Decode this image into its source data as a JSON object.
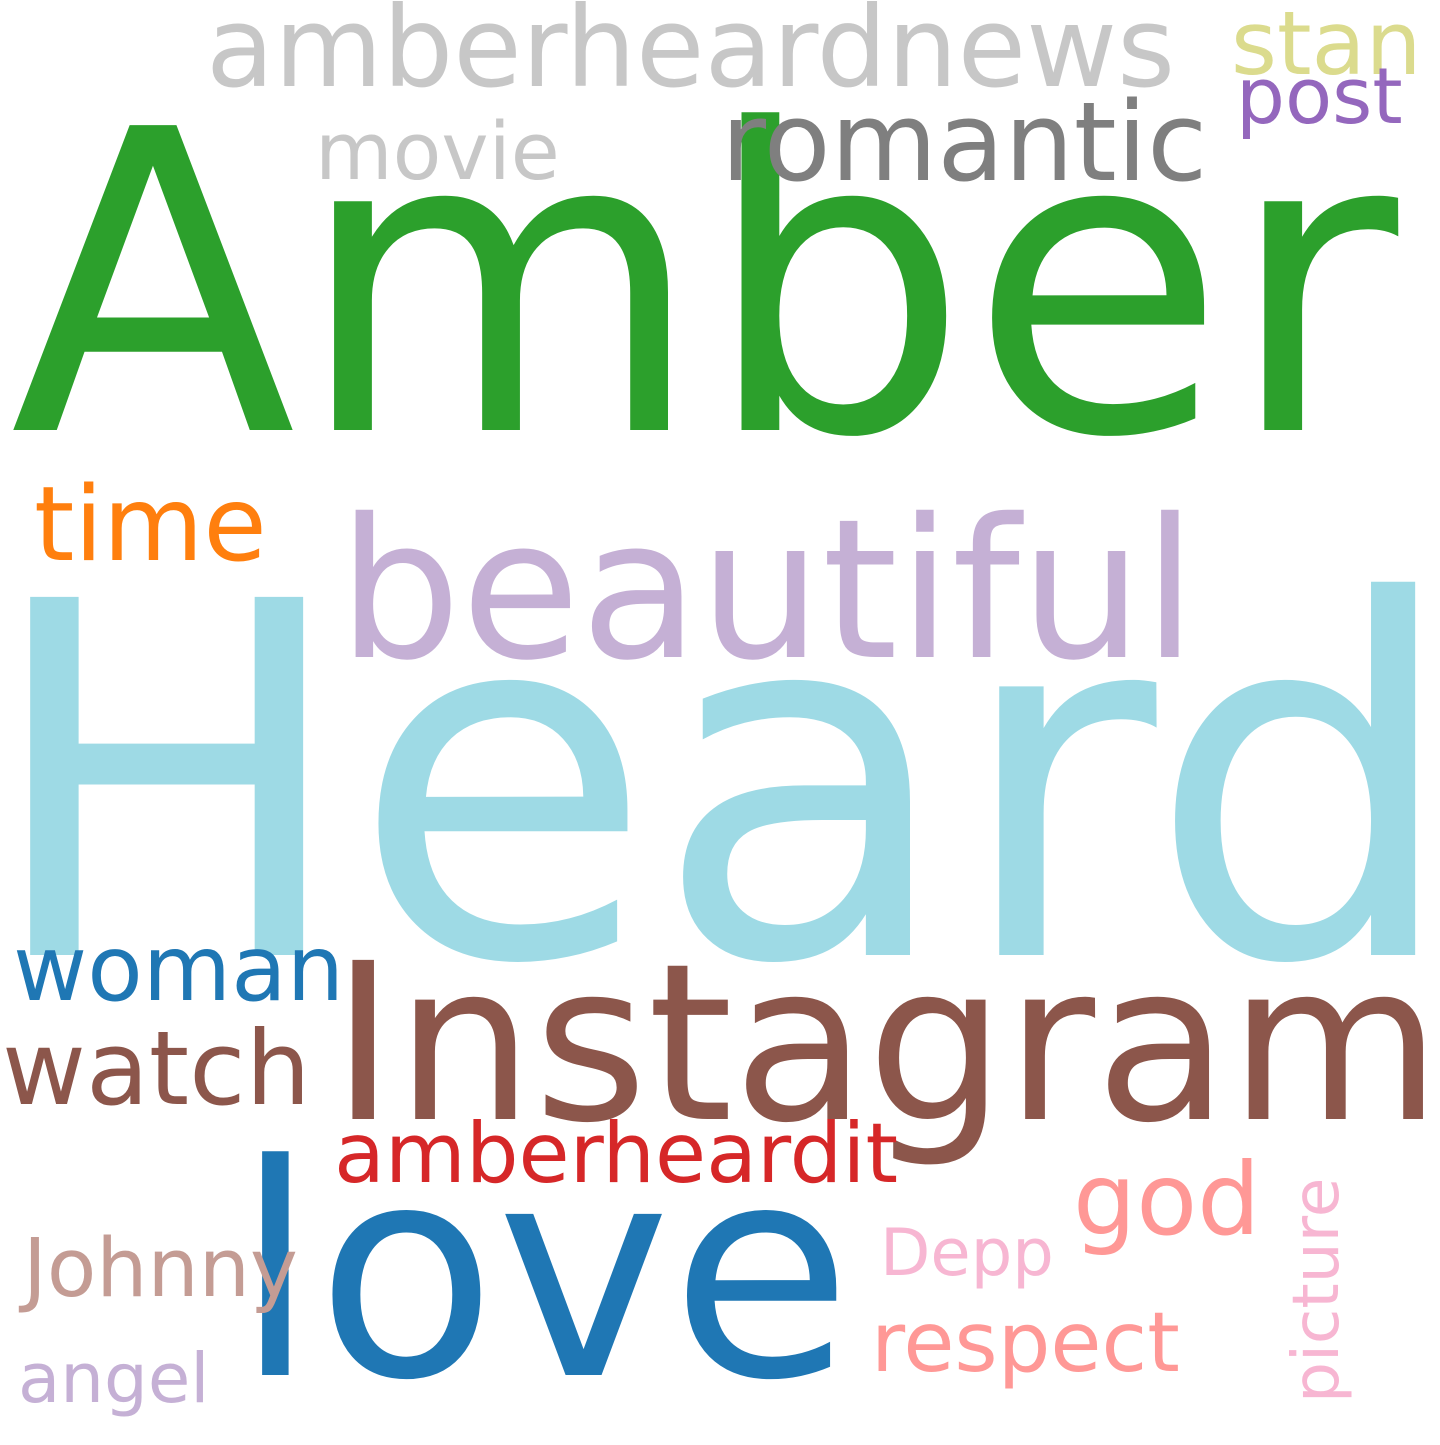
{
  "words": [
    {
      "key": "amber",
      "text": "Amber",
      "color": "#2ca02c"
    },
    {
      "key": "heard",
      "text": "Heard",
      "color": "#9edae5"
    },
    {
      "key": "instagram",
      "text": "Instagram",
      "color": "#8c564b"
    },
    {
      "key": "beautiful",
      "text": "beautiful",
      "color": "#c5b0d5"
    },
    {
      "key": "love",
      "text": "love",
      "color": "#1f77b4"
    },
    {
      "key": "amberheardnews",
      "text": "amberheardnews",
      "color": "#c7c7c7"
    },
    {
      "key": "romantic",
      "text": "romantic",
      "color": "#7f7f7f"
    },
    {
      "key": "movie",
      "text": "movie",
      "color": "#c7c7c7"
    },
    {
      "key": "stan",
      "text": "stan",
      "color": "#dbdb8d"
    },
    {
      "key": "post",
      "text": "post",
      "color": "#9467bd"
    },
    {
      "key": "time",
      "text": "time",
      "color": "#ff7f0e"
    },
    {
      "key": "woman",
      "text": "woman",
      "color": "#1f77b4"
    },
    {
      "key": "watch",
      "text": "watch",
      "color": "#8c564b"
    },
    {
      "key": "amberheardit",
      "text": "amberheardit",
      "color": "#d62728"
    },
    {
      "key": "god",
      "text": "god",
      "color": "#ff9896"
    },
    {
      "key": "johnny",
      "text": "Johnny",
      "color": "#c49c94"
    },
    {
      "key": "depp",
      "text": "Depp",
      "color": "#f7b6d2"
    },
    {
      "key": "respect",
      "text": "respect",
      "color": "#ff9896"
    },
    {
      "key": "angel",
      "text": "angel",
      "color": "#c5b0d5"
    },
    {
      "key": "picture",
      "text": "picture",
      "color": "#f7b6d2"
    }
  ]
}
